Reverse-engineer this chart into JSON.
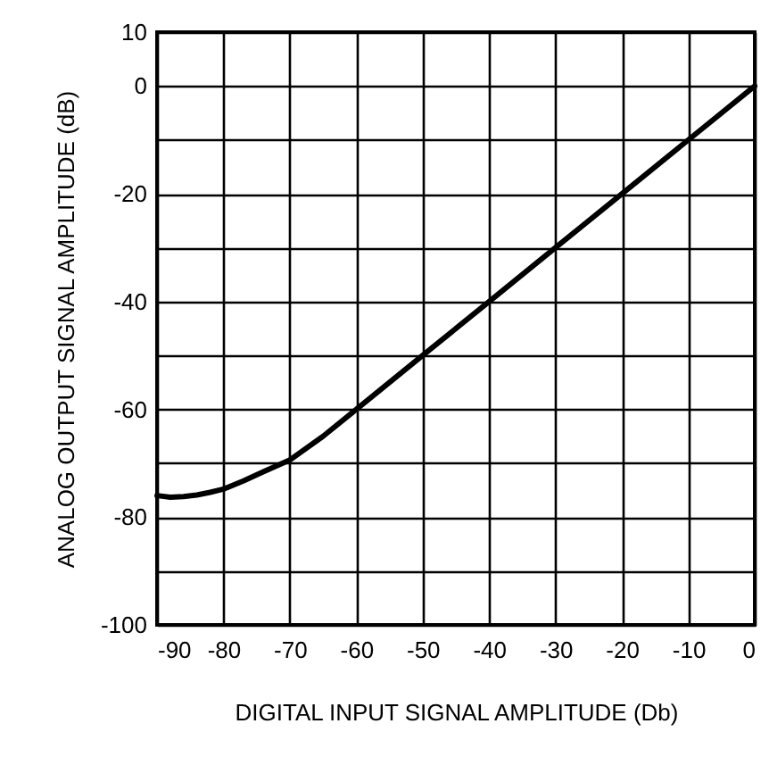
{
  "chart_data": {
    "type": "line",
    "xlabel": "DIGITAL INPUT SIGNAL AMPLITUDE (Db)",
    "ylabel": "ANALOG OUTPUT SIGNAL AMPLITUDE (dB)",
    "x": [
      -90,
      -88,
      -86,
      -84,
      -82,
      -80,
      -77,
      -74,
      -70,
      -65,
      -60,
      -55,
      -50,
      -40,
      -30,
      -20,
      -10,
      0
    ],
    "series": [
      {
        "color": "#000000",
        "values": [
          -76,
          -76.3,
          -76.2,
          -75.9,
          -75.4,
          -74.8,
          -73.3,
          -71.6,
          -69.4,
          -65,
          -60,
          -55,
          -50,
          -40,
          -30,
          -20,
          -10,
          0
        ]
      }
    ],
    "xlim": [
      -90,
      0
    ],
    "xticks": [
      -90,
      -80,
      -70,
      -60,
      -50,
      -40,
      -30,
      -20,
      -10,
      0
    ],
    "ylim": [
      -100,
      10
    ],
    "yticks": [
      -100,
      {
        "value": -90,
        "label": null
      },
      -80,
      {
        "value": -70,
        "label": null
      },
      -60,
      {
        "value": -50,
        "label": null
      },
      -40,
      {
        "value": -30,
        "label": null
      },
      -20,
      {
        "value": -10,
        "label": null
      },
      0,
      10
    ],
    "grid": true,
    "marker": "none",
    "line_style": "solid"
  }
}
